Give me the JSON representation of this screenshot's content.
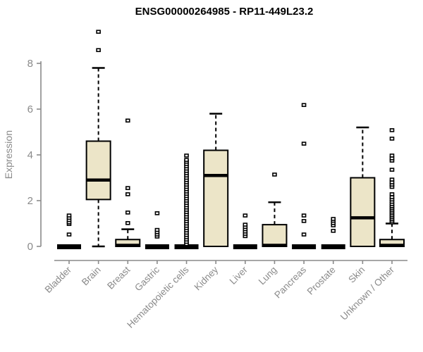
{
  "page": {
    "background": "#ffffff"
  },
  "chart_data": {
    "type": "boxplot",
    "title": "ENSG00000264985 - RP11-449L23.2",
    "ylabel": "Expression",
    "xlabel": "",
    "yticks": [
      0,
      2,
      4,
      6,
      8
    ],
    "ylim": [
      0,
      9.6
    ],
    "grid": false,
    "legend": null,
    "categories": [
      "Bladder",
      "Brain",
      "Breast",
      "Gastric",
      "Hematopoietic cells",
      "Kidney",
      "Liver",
      "Lung",
      "Pancreas",
      "Prostate",
      "Skin",
      "Unknown / Other"
    ],
    "boxes": [
      {
        "category": "Bladder",
        "q1": 0,
        "median": 0,
        "q3": 0,
        "whisker_low": 0,
        "whisker_high": 0,
        "outliers": [
          0.52,
          0.98,
          1.05,
          1.15,
          1.25,
          1.35
        ]
      },
      {
        "category": "Brain",
        "q1": 2.05,
        "median": 2.9,
        "q3": 4.6,
        "whisker_low": 0,
        "whisker_high": 7.8,
        "outliers": [
          8.58,
          9.38
        ]
      },
      {
        "category": "Breast",
        "q1": 0,
        "median": 0,
        "q3": 0.3,
        "whisker_low": 0,
        "whisker_high": 0.75,
        "outliers": [
          1.02,
          1.48,
          2.28,
          2.55,
          5.5
        ]
      },
      {
        "category": "Gastric",
        "q1": 0,
        "median": 0,
        "q3": 0,
        "whisker_low": 0,
        "whisker_high": 0,
        "outliers": [
          0.43,
          0.52,
          0.62,
          0.72,
          1.45
        ]
      },
      {
        "category": "Hematopoietic cells",
        "q1": 0,
        "median": 0,
        "q3": 0,
        "whisker_low": 0,
        "whisker_high": 0,
        "outliers": [
          0.1,
          0.2,
          0.3,
          0.4,
          0.5,
          0.6,
          0.7,
          0.8,
          0.9,
          1.0,
          1.1,
          1.2,
          1.3,
          1.4,
          1.5,
          1.6,
          1.7,
          1.8,
          1.9,
          2.0,
          2.1,
          2.2,
          2.3,
          2.4,
          2.5,
          2.6,
          2.7,
          2.8,
          2.9,
          3.0,
          3.1,
          3.2,
          3.3,
          3.4,
          3.5,
          3.6,
          3.7,
          3.78,
          3.97
        ]
      },
      {
        "category": "Kidney",
        "q1": 0,
        "median": 3.1,
        "q3": 4.2,
        "whisker_low": 0,
        "whisker_high": 5.8,
        "outliers": []
      },
      {
        "category": "Liver",
        "q1": 0,
        "median": 0,
        "q3": 0,
        "whisker_low": 0,
        "whisker_high": 0,
        "outliers": [
          0.45,
          0.55,
          0.65,
          0.75,
          0.85,
          0.95,
          1.35
        ]
      },
      {
        "category": "Lung",
        "q1": 0,
        "median": 0,
        "q3": 0.95,
        "whisker_low": 0,
        "whisker_high": 1.93,
        "outliers": [
          3.14
        ]
      },
      {
        "category": "Pancreas",
        "q1": 0,
        "median": 0,
        "q3": 0,
        "whisker_low": 0,
        "whisker_high": 0,
        "outliers": [
          0.52,
          1.11,
          1.35,
          4.49,
          6.18
        ]
      },
      {
        "category": "Prostate",
        "q1": 0,
        "median": 0,
        "q3": 0,
        "whisker_low": 0,
        "whisker_high": 0,
        "outliers": [
          0.68,
          0.92,
          1.02,
          1.12,
          1.2
        ]
      },
      {
        "category": "Skin",
        "q1": 0,
        "median": 1.25,
        "q3": 3.0,
        "whisker_low": 0,
        "whisker_high": 5.2,
        "outliers": []
      },
      {
        "category": "Unknown / Other",
        "q1": 0,
        "median": 0,
        "q3": 0.3,
        "whisker_low": 0,
        "whisker_high": 1.0,
        "outliers": [
          1.05,
          1.12,
          1.2,
          1.28,
          1.36,
          1.44,
          1.52,
          1.6,
          1.68,
          1.76,
          1.85,
          1.95,
          2.05,
          2.15,
          2.28,
          2.6,
          2.7,
          2.8,
          2.92,
          3.35,
          3.75,
          3.85,
          3.97,
          4.71,
          5.08
        ]
      }
    ],
    "colors": {
      "box_fill": "#ece5c8",
      "box_stroke": "#000000",
      "median": "#000000",
      "outlier_stroke": "#000000",
      "outlier_fill": "#ffffff",
      "axis": "#8a8a8a",
      "tick_text": "#8a8a8a",
      "title_text": "#000000",
      "background": "#ffffff"
    }
  }
}
